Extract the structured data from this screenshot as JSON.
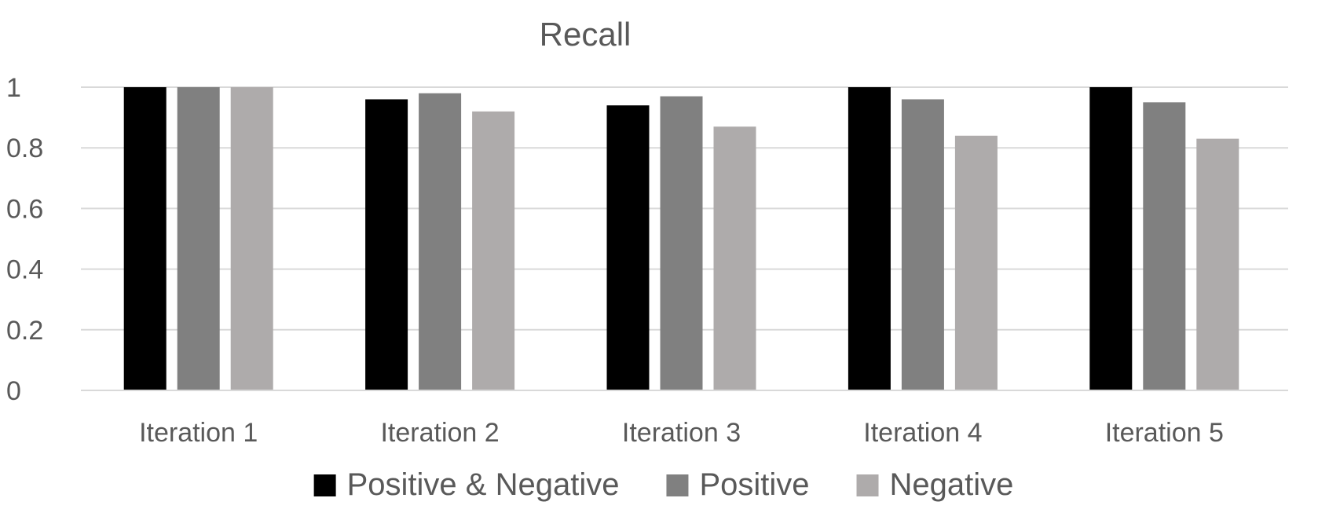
{
  "chart_data": {
    "type": "bar",
    "title": "Recall",
    "xlabel": "",
    "ylabel": "",
    "categories": [
      "Iteration 1",
      "Iteration 2",
      "Iteration 3",
      "Iteration 4",
      "Iteration 5"
    ],
    "series": [
      {
        "name": "Positive & Negative",
        "color": "#000000",
        "values": [
          1.0,
          0.96,
          0.94,
          1.0,
          1.0
        ]
      },
      {
        "name": "Positive",
        "color": "#808080",
        "values": [
          1.0,
          0.98,
          0.97,
          0.96,
          0.95
        ]
      },
      {
        "name": "Negative",
        "color": "#aeabab",
        "values": [
          1.0,
          0.92,
          0.87,
          0.84,
          0.83
        ]
      }
    ],
    "ylim": [
      0,
      1
    ],
    "yticks": [
      0,
      0.2,
      0.4,
      0.6,
      0.8,
      1
    ],
    "ytick_labels": [
      "0",
      "0.2",
      "0.4",
      "0.6",
      "0.8",
      "1"
    ],
    "grid": true,
    "legend_position": "bottom"
  }
}
